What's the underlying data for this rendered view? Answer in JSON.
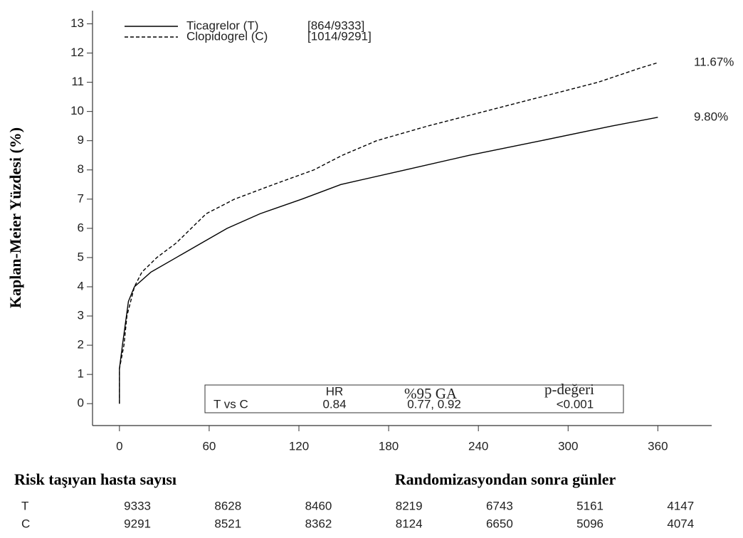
{
  "chart_data": {
    "type": "line",
    "ylabel": "Kaplan-Meier Yüzdesi (%)",
    "xlabel": "Randomizasyondan sonra günler",
    "xlim": [
      -18,
      396
    ],
    "ylim": [
      -0.75,
      13.45
    ],
    "xticks": [
      0,
      60,
      120,
      180,
      240,
      300,
      360
    ],
    "yticks": [
      0,
      1,
      2,
      3,
      4,
      5,
      6,
      7,
      8,
      9,
      10,
      11,
      12,
      13
    ],
    "series": [
      {
        "name": "Ticagrelor (T)",
        "counts": "[864/9333]",
        "color": "#000000",
        "dashed": false,
        "end_label": "9.80%",
        "x": [
          0,
          0,
          2,
          6,
          10,
          21,
          38,
          55,
          72,
          94,
          122,
          148,
          191,
          234,
          282,
          329,
          360
        ],
        "values": [
          0,
          1.2,
          2.0,
          3.5,
          4.0,
          4.5,
          5.0,
          5.5,
          6.0,
          6.5,
          7.0,
          7.5,
          8.0,
          8.5,
          9.0,
          9.5,
          9.8
        ]
      },
      {
        "name": "Clopidogrel (C)",
        "counts": "[1014/9291]",
        "color": "#000000",
        "dashed": true,
        "end_label": "11.67%",
        "x": [
          0,
          0,
          3,
          5,
          10,
          15,
          25,
          38,
          48,
          58,
          77,
          103,
          130,
          149,
          172,
          206,
          244,
          282,
          320,
          349,
          360
        ],
        "values": [
          0,
          1.2,
          2.0,
          3.0,
          4.0,
          4.5,
          5.0,
          5.5,
          6.0,
          6.5,
          7.0,
          7.5,
          8.0,
          8.5,
          9.0,
          9.5,
          10.0,
          10.5,
          11.0,
          11.5,
          11.67
        ]
      }
    ],
    "hr_table": {
      "headers": [
        "HR",
        "%95 GA",
        "p-değeri"
      ],
      "row": [
        "T vs C",
        "0.84",
        "0.77, 0.92",
        "<0.001"
      ]
    },
    "risk_table": {
      "title": "Risk taşıyan hasta sayısı",
      "rows": [
        {
          "label": "T",
          "counts": [
            "9333",
            "8628",
            "8460",
            "8219",
            "6743",
            "5161",
            "4147"
          ]
        },
        {
          "label": "C",
          "counts": [
            "9291",
            "8521",
            "8362",
            "8124",
            "6650",
            "5096",
            "4074"
          ]
        }
      ]
    }
  }
}
